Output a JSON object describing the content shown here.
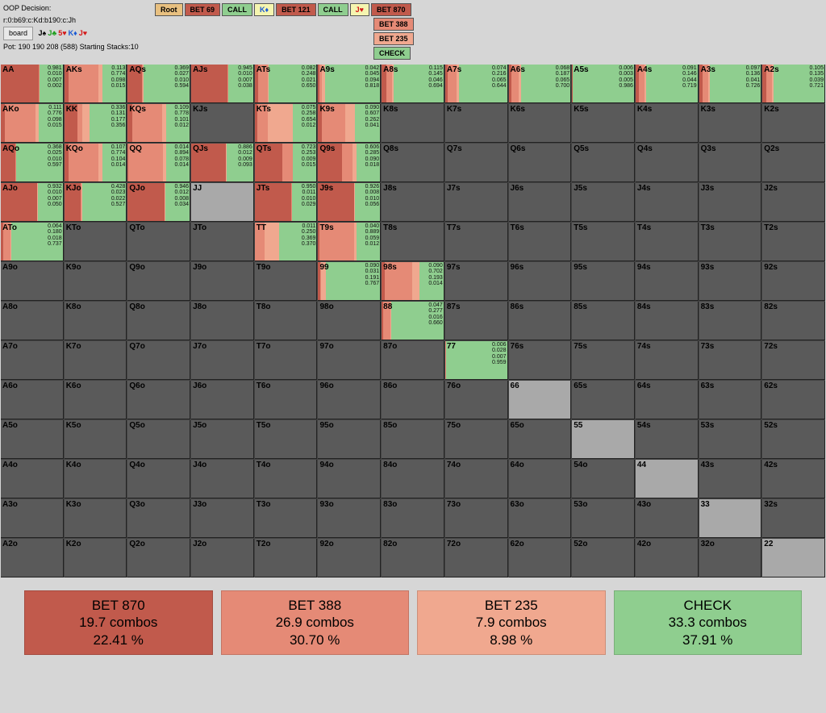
{
  "colors": {
    "bet870": "#c15a4c",
    "bet388": "#e58a76",
    "bet235": "#f0a88f",
    "check": "#8fce8f",
    "empty_light": "#a9a9a9",
    "empty_dark": "#5a5a5a",
    "root_bg": "#e8c080",
    "call_bg": "#8fce8f",
    "card_bg": "#f5f5b0"
  },
  "info": {
    "title": "OOP Decision:",
    "path": "r:0:b69:c:Kd:b190:c:Jh",
    "board_btn": "board",
    "cards": [
      {
        "t": "J♠",
        "c": "spades"
      },
      {
        "t": "J♣",
        "c": "clubs"
      },
      {
        "t": "5♥",
        "c": "hearts"
      },
      {
        "t": "K♦",
        "c": "diamonds"
      },
      {
        "t": "J♥",
        "c": "hearts"
      }
    ],
    "pot": "Pot: 190 190 208 (588) Starting Stacks:10"
  },
  "tree": {
    "row1": [
      {
        "label": "Root",
        "color": "#e8c080"
      },
      {
        "label": "BET 69",
        "color": "#c15a4c"
      },
      {
        "label": "CALL",
        "color": "#8fce8f"
      },
      {
        "label": "K♦",
        "color": "#f5f5b0",
        "tc": "#1a5ad4"
      },
      {
        "label": "BET 121",
        "color": "#c15a4c"
      },
      {
        "label": "CALL",
        "color": "#8fce8f"
      },
      {
        "label": "J♥",
        "color": "#f5f5b0",
        "tc": "#d41818"
      },
      {
        "label": "BET 870",
        "color": "#c15a4c"
      }
    ],
    "row2_indent": 7,
    "row2": [
      {
        "label": "BET 388",
        "color": "#e58a76"
      }
    ],
    "row3": [
      {
        "label": "BET 235",
        "color": "#f0a88f"
      }
    ],
    "row4": [
      {
        "label": "CHECK",
        "color": "#8fce8f"
      }
    ]
  },
  "summary": [
    {
      "name": "BET 870",
      "combos": "19.7 combos",
      "pct": "22.41 %",
      "color": "#c15a4c"
    },
    {
      "name": "BET 388",
      "combos": "26.9 combos",
      "pct": "30.70 %",
      "color": "#e58a76"
    },
    {
      "name": "BET 235",
      "combos": "7.9 combos",
      "pct": "8.98 %",
      "color": "#f0a88f"
    },
    {
      "name": "CHECK",
      "combos": "33.3 combos",
      "pct": "37.91 %",
      "color": "#8fce8f"
    }
  ],
  "ranks": [
    "A",
    "K",
    "Q",
    "J",
    "T",
    "9",
    "8",
    "7",
    "6",
    "5",
    "4",
    "3",
    "2"
  ],
  "strategy": {
    "AA": {
      "f": [
        0.981,
        0.01,
        0.007,
        0.002
      ]
    },
    "AKs": {
      "f": [
        0.113,
        0.774,
        0.098,
        0.015
      ]
    },
    "AQs": {
      "f": [
        0.369,
        0.027,
        0.01,
        0.594
      ]
    },
    "AJs": {
      "f": [
        0.945,
        0.01,
        0.007,
        0.038
      ]
    },
    "ATs": {
      "f": [
        0.082,
        0.248,
        0.021,
        0.65
      ]
    },
    "A9s": {
      "f": [
        0.042,
        0.045,
        0.094,
        0.818
      ]
    },
    "A8s": {
      "f": [
        0.115,
        0.145,
        0.046,
        0.694
      ]
    },
    "A7s": {
      "f": [
        0.074,
        0.216,
        0.065,
        0.644
      ]
    },
    "A6s": {
      "f": [
        0.068,
        0.187,
        0.065,
        0.7
      ]
    },
    "A5s": {
      "f": [
        0.006,
        0.003,
        0.005,
        0.986
      ]
    },
    "A4s": {
      "f": [
        0.091,
        0.146,
        0.044,
        0.719
      ]
    },
    "A3s": {
      "f": [
        0.097,
        0.136,
        0.041,
        0.726
      ]
    },
    "A2s": {
      "f": [
        0.105,
        0.135,
        0.039,
        0.721
      ]
    },
    "AKo": {
      "f": [
        0.111,
        0.776,
        0.098,
        0.015
      ]
    },
    "KK": {
      "f": [
        0.336,
        0.131,
        0.177,
        0.356
      ]
    },
    "KQs": {
      "f": [
        0.109,
        0.778,
        0.101,
        0.012
      ]
    },
    "KJs": {
      "f": null
    },
    "KTs": {
      "f": [
        0.075,
        0.258,
        0.654,
        0.012
      ]
    },
    "K9s": {
      "f": [
        0.09,
        0.607,
        0.262,
        0.041
      ]
    },
    "K8s": {
      "f": null
    },
    "K7s": {
      "f": null
    },
    "K6s": {
      "f": null
    },
    "K5s": {
      "f": null
    },
    "K4s": {
      "f": null
    },
    "K3s": {
      "f": null
    },
    "K2s": {
      "f": null
    },
    "AQo": {
      "f": [
        0.368,
        0.025,
        0.01,
        0.597
      ]
    },
    "KQo": {
      "f": [
        0.107,
        0.774,
        0.104,
        0.014
      ]
    },
    "QQ": {
      "f": [
        0.014,
        0.894,
        0.078,
        0.014
      ]
    },
    "QJs": {
      "f": [
        0.886,
        0.012,
        0.009,
        0.093
      ]
    },
    "QTs": {
      "f": [
        0.723,
        0.253,
        0.009,
        0.015
      ]
    },
    "Q9s": {
      "f": [
        0.606,
        0.285,
        0.09,
        0.018
      ]
    },
    "Q8s": {
      "f": null
    },
    "Q7s": {
      "f": null
    },
    "Q6s": {
      "f": null
    },
    "Q5s": {
      "f": null
    },
    "Q4s": {
      "f": null
    },
    "Q3s": {
      "f": null
    },
    "Q2s": {
      "f": null
    },
    "AJo": {
      "f": [
        0.932,
        0.01,
        0.007,
        0.05
      ]
    },
    "KJo": {
      "f": [
        0.428,
        0.023,
        0.022,
        0.527
      ]
    },
    "QJo": {
      "f": [
        0.946,
        0.012,
        0.008,
        0.034
      ]
    },
    "JJ": {
      "f": null,
      "light": true
    },
    "JTs": {
      "f": [
        0.95,
        0.011,
        0.01,
        0.029
      ]
    },
    "J9s": {
      "f": [
        0.926,
        0.008,
        0.01,
        0.056
      ]
    },
    "J8s": {
      "f": null
    },
    "J7s": {
      "f": null
    },
    "J6s": {
      "f": null
    },
    "J5s": {
      "f": null
    },
    "J4s": {
      "f": null
    },
    "J3s": {
      "f": null
    },
    "J2s": {
      "f": null
    },
    "ATo": {
      "f": [
        0.064,
        0.18,
        0.018,
        0.737
      ]
    },
    "KTo": {
      "f": null
    },
    "QTo": {
      "f": null
    },
    "JTo": {
      "f": null
    },
    "TT": {
      "f": [
        0.011,
        0.25,
        0.369,
        0.37
      ]
    },
    "T9s": {
      "f": [
        0.04,
        0.889,
        0.059,
        0.012
      ]
    },
    "T8s": {
      "f": null
    },
    "T7s": {
      "f": null
    },
    "T6s": {
      "f": null
    },
    "T5s": {
      "f": null
    },
    "T4s": {
      "f": null
    },
    "T3s": {
      "f": null
    },
    "T2s": {
      "f": null
    },
    "A9o": {
      "f": null
    },
    "K9o": {
      "f": null
    },
    "Q9o": {
      "f": null
    },
    "J9o": {
      "f": null
    },
    "T9o": {
      "f": null
    },
    "99": {
      "f": [
        0.09,
        0.031,
        0.191,
        0.767
      ],
      "half": true
    },
    "98s": {
      "f": [
        0.09,
        0.702,
        0.193,
        0.014
      ]
    },
    "97s": {
      "f": null
    },
    "96s": {
      "f": null
    },
    "95s": {
      "f": null
    },
    "94s": {
      "f": null
    },
    "93s": {
      "f": null
    },
    "92s": {
      "f": null
    },
    "A8o": {
      "f": null
    },
    "K8o": {
      "f": null
    },
    "Q8o": {
      "f": null
    },
    "J8o": {
      "f": null
    },
    "T8o": {
      "f": null
    },
    "98o": {
      "f": null
    },
    "88": {
      "f": [
        0.047,
        0.277,
        0.016,
        0.66
      ],
      "half": true
    },
    "87s": {
      "f": null
    },
    "86s": {
      "f": null
    },
    "85s": {
      "f": null
    },
    "84s": {
      "f": null
    },
    "83s": {
      "f": null
    },
    "82s": {
      "f": null
    },
    "A7o": {
      "f": null
    },
    "K7o": {
      "f": null
    },
    "Q7o": {
      "f": null
    },
    "J7o": {
      "f": null
    },
    "T7o": {
      "f": null
    },
    "97o": {
      "f": null
    },
    "87o": {
      "f": null
    },
    "77": {
      "f": [
        0.006,
        0.028,
        0.007,
        0.959
      ],
      "half": true
    },
    "76s": {
      "f": null
    },
    "75s": {
      "f": null
    },
    "74s": {
      "f": null
    },
    "73s": {
      "f": null
    },
    "72s": {
      "f": null
    },
    "A6o": {
      "f": null
    },
    "K6o": {
      "f": null
    },
    "Q6o": {
      "f": null
    },
    "J6o": {
      "f": null
    },
    "T6o": {
      "f": null
    },
    "96o": {
      "f": null
    },
    "86o": {
      "f": null
    },
    "76o": {
      "f": null
    },
    "66": {
      "f": null,
      "light": true
    },
    "65s": {
      "f": null
    },
    "64s": {
      "f": null
    },
    "63s": {
      "f": null
    },
    "62s": {
      "f": null
    },
    "A5o": {
      "f": null
    },
    "K5o": {
      "f": null
    },
    "Q5o": {
      "f": null
    },
    "J5o": {
      "f": null
    },
    "T5o": {
      "f": null
    },
    "95o": {
      "f": null
    },
    "85o": {
      "f": null
    },
    "75o": {
      "f": null
    },
    "65o": {
      "f": null
    },
    "55": {
      "f": null,
      "light": true
    },
    "54s": {
      "f": null
    },
    "53s": {
      "f": null
    },
    "52s": {
      "f": null
    },
    "A4o": {
      "f": null
    },
    "K4o": {
      "f": null
    },
    "Q4o": {
      "f": null
    },
    "J4o": {
      "f": null
    },
    "T4o": {
      "f": null
    },
    "94o": {
      "f": null
    },
    "84o": {
      "f": null
    },
    "74o": {
      "f": null
    },
    "64o": {
      "f": null
    },
    "54o": {
      "f": null
    },
    "44": {
      "f": null,
      "light": true
    },
    "43s": {
      "f": null
    },
    "42s": {
      "f": null
    },
    "A3o": {
      "f": null
    },
    "K3o": {
      "f": null
    },
    "Q3o": {
      "f": null
    },
    "J3o": {
      "f": null
    },
    "T3o": {
      "f": null
    },
    "93o": {
      "f": null
    },
    "83o": {
      "f": null
    },
    "73o": {
      "f": null
    },
    "63o": {
      "f": null
    },
    "53o": {
      "f": null
    },
    "43o": {
      "f": null
    },
    "33": {
      "f": null,
      "light": true
    },
    "32s": {
      "f": null
    },
    "A2o": {
      "f": null
    },
    "K2o": {
      "f": null
    },
    "Q2o": {
      "f": null
    },
    "J2o": {
      "f": null
    },
    "T2o": {
      "f": null
    },
    "92o": {
      "f": null
    },
    "82o": {
      "f": null
    },
    "72o": {
      "f": null
    },
    "62o": {
      "f": null
    },
    "52o": {
      "f": null
    },
    "42o": {
      "f": null
    },
    "32o": {
      "f": null
    },
    "22": {
      "f": null,
      "light": true
    }
  }
}
